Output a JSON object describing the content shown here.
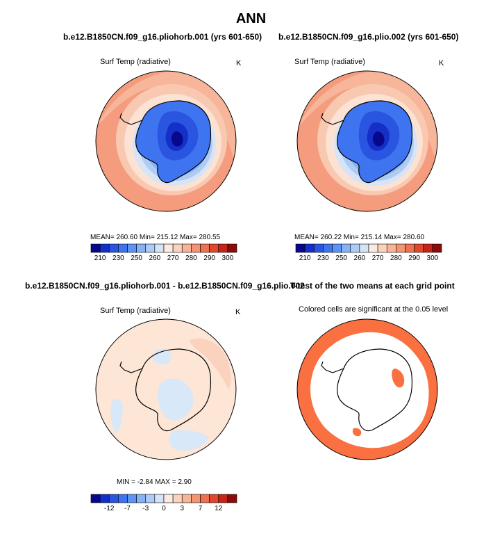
{
  "title": "ANN",
  "panels": {
    "case1": {
      "title": "b.e12.B1850CN.f09_g16.pliohorb.001 (yrs 601-650)",
      "variable": "Surf Temp (radiative)",
      "units": "K",
      "stats": "MEAN=  260.60    Min=  215.12    Max=  280.55",
      "mean": 260.6,
      "min": 215.12,
      "max": 280.55
    },
    "case2": {
      "title": "b.e12.B1850CN.f09_g16.plio.002 (yrs 601-650)",
      "variable": "Surf Temp (radiative)",
      "units": "K",
      "stats": "MEAN=  260.22    Min=  215.14    Max=  280.60",
      "mean": 260.22,
      "min": 215.14,
      "max": 280.6
    },
    "diff": {
      "title": "b.e12.B1850CN.f09_g16.pliohorb.001 - b.e12.B1850CN.f09_g16.plio.002",
      "variable": "Surf Temp (radiative)",
      "units": "K",
      "stats": "MIN =  -2.84   MAX =   2.90",
      "min": -2.84,
      "max": 2.9
    },
    "ttest": {
      "title": "T-test of the two means at each grid point",
      "note": "Colored cells are significant at the 0.05 level"
    }
  },
  "colorbars": {
    "abs": {
      "labels": [
        "210",
        "230",
        "250",
        "260",
        "270",
        "280",
        "290",
        "300"
      ],
      "colors": [
        "#08088c",
        "#1530c8",
        "#2a55e0",
        "#3e74f0",
        "#5e94f5",
        "#86b2f6",
        "#aecbf6",
        "#d4e3f6",
        "#fbeae0",
        "#fad2bd",
        "#f7b598",
        "#f39473",
        "#ee7152",
        "#e0472f",
        "#c62418",
        "#8c0a0a"
      ]
    },
    "diff": {
      "labels": [
        "-12",
        "-7",
        "-3",
        "0",
        "3",
        "7",
        "12"
      ],
      "colors": [
        "#08088c",
        "#1530c8",
        "#2a55e0",
        "#3e74f0",
        "#5e94f5",
        "#86b2f6",
        "#aecbf6",
        "#d4e3f6",
        "#fbeae0",
        "#fad2bd",
        "#f7b598",
        "#f39473",
        "#ee7152",
        "#e0472f",
        "#c62418",
        "#8c0a0a"
      ]
    }
  },
  "colors": {
    "significant": "#fa7040",
    "diff_positive": "#fde6d6",
    "diff_negative": "#d8e8f8"
  }
}
